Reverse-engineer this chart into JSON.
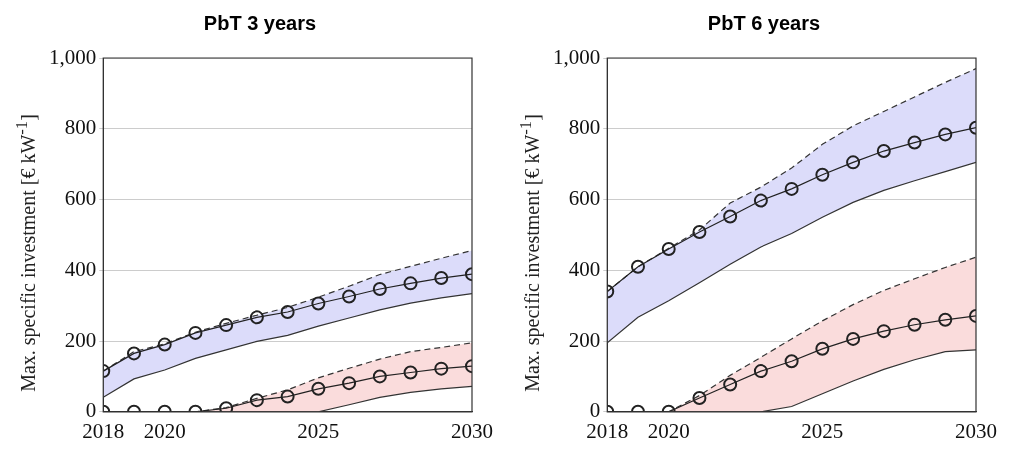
{
  "chart_data": [
    {
      "type": "line",
      "title": "PbT 3 years",
      "ylabel": "Max. specific investment [€ kW$^{-1}$]",
      "x": [
        2018,
        2019,
        2020,
        2021,
        2022,
        2023,
        2024,
        2025,
        2026,
        2027,
        2028,
        2029,
        2030
      ],
      "xlim": [
        2018,
        2030
      ],
      "xticks": [
        2018,
        2020,
        2025,
        2030
      ],
      "ylim": [
        0,
        1000
      ],
      "yticks": [
        0,
        200,
        400,
        600,
        800,
        {
          "value": 1000,
          "label": "1,000"
        }
      ],
      "grid": "y",
      "legend": false,
      "marker": "circle",
      "series": [
        {
          "color": "#222222",
          "values": [
            115,
            165,
            190,
            223,
            245,
            267,
            282,
            306,
            326,
            347,
            363,
            378,
            389
          ],
          "lower": [
            41,
            93,
            118,
            151,
            175,
            199,
            216,
            242,
            265,
            288,
            307,
            322,
            334
          ],
          "upper": [
            115,
            170,
            192,
            225,
            250,
            273,
            295,
            324,
            355,
            388,
            411,
            434,
            456
          ]
        },
        {
          "color": "#333333",
          "marker": "none",
          "line_style": "dashed",
          "values": [
            115,
            170,
            192,
            225,
            250,
            273,
            295,
            324,
            355,
            388,
            411,
            434,
            456
          ]
        },
        {
          "color": "#333333",
          "marker": "none",
          "values": [
            41,
            93,
            118,
            151,
            175,
            199,
            216,
            242,
            265,
            288,
            307,
            322,
            334
          ]
        },
        {
          "color": "#222222",
          "values": [
            0,
            0,
            0,
            0,
            10,
            33,
            43,
            65,
            81,
            100,
            111,
            122,
            129
          ],
          "lower": [
            0,
            0,
            0,
            0,
            0,
            0,
            0,
            0,
            20,
            41,
            55,
            65,
            72
          ],
          "upper": [
            0,
            0,
            0,
            0,
            12,
            38,
            62,
            96,
            123,
            149,
            170,
            182,
            195
          ]
        },
        {
          "color": "#333333",
          "marker": "none",
          "line_style": "dashed",
          "values": [
            0,
            0,
            0,
            0,
            12,
            38,
            62,
            96,
            123,
            149,
            170,
            182,
            195
          ]
        },
        {
          "color": "#333333",
          "marker": "none",
          "values": [
            0,
            0,
            0,
            0,
            0,
            0,
            0,
            0,
            20,
            41,
            55,
            65,
            72
          ]
        }
      ]
    },
    {
      "type": "line",
      "title": "PbT 6 years",
      "ylabel": "Max. specific investment [€ kW$^{-1}$]",
      "x": [
        2018,
        2019,
        2020,
        2021,
        2022,
        2023,
        2024,
        2025,
        2026,
        2027,
        2028,
        2029,
        2030
      ],
      "xlim": [
        2018,
        2030
      ],
      "xticks": [
        2018,
        2020,
        2025,
        2030
      ],
      "ylim": [
        0,
        1000
      ],
      "yticks": [
        0,
        200,
        400,
        600,
        800,
        {
          "value": 1000,
          "label": "1,000"
        }
      ],
      "grid": "y",
      "legend": false,
      "marker": "circle",
      "series": [
        {
          "color": "#222222",
          "values": [
            340,
            410,
            460,
            508,
            552,
            597,
            630,
            670,
            705,
            737,
            761,
            784,
            803
          ],
          "lower": [
            195,
            267,
            314,
            365,
            417,
            466,
            504,
            550,
            592,
            626,
            653,
            679,
            705
          ],
          "upper": [
            340,
            410,
            462,
            514,
            590,
            635,
            689,
            756,
            808,
            849,
            890,
            931,
            970
          ]
        },
        {
          "color": "#333333",
          "marker": "none",
          "line_style": "dashed",
          "values": [
            340,
            410,
            462,
            514,
            590,
            635,
            689,
            756,
            808,
            849,
            890,
            931,
            970
          ]
        },
        {
          "color": "#333333",
          "marker": "none",
          "values": [
            195,
            267,
            314,
            365,
            417,
            466,
            504,
            550,
            592,
            626,
            653,
            679,
            705
          ]
        },
        {
          "color": "#222222",
          "values": [
            0,
            0,
            0,
            39,
            77,
            115,
            143,
            178,
            206,
            228,
            246,
            260,
            271
          ],
          "lower": [
            0,
            0,
            0,
            0,
            0,
            0,
            15,
            51,
            87,
            120,
            147,
            170,
            175
          ],
          "upper": [
            0,
            0,
            0,
            46,
            103,
            154,
            206,
            257,
            303,
            343,
            376,
            408,
            437
          ]
        },
        {
          "color": "#333333",
          "marker": "none",
          "line_style": "dashed",
          "values": [
            0,
            0,
            0,
            46,
            103,
            154,
            206,
            257,
            303,
            343,
            376,
            408,
            437
          ]
        },
        {
          "color": "#333333",
          "marker": "none",
          "values": [
            0,
            0,
            0,
            0,
            0,
            0,
            15,
            51,
            87,
            120,
            147,
            170,
            175
          ]
        }
      ]
    }
  ]
}
